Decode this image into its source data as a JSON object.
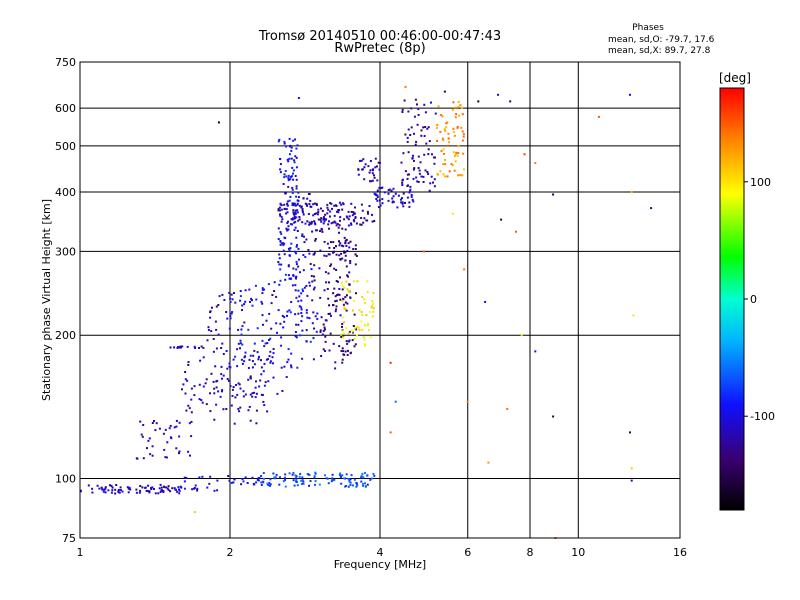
{
  "chart_data": {
    "type": "scatter",
    "title": "Tromsø 20140510 00:46:00-00:47:43",
    "subtitle": "RwPretec (8p)",
    "xlabel": "Frequency [MHz]",
    "ylabel": "Stationary phase Virtual Height [km]",
    "x_scale": "log",
    "y_scale": "log",
    "xlim": [
      1,
      16
    ],
    "ylim": [
      75,
      750
    ],
    "x_ticks": [
      1,
      2,
      4,
      6,
      8,
      10,
      16
    ],
    "y_ticks": [
      75,
      100,
      200,
      300,
      400,
      500,
      600,
      750
    ],
    "grid": true,
    "stats": {
      "title": "Phases",
      "o_line": "mean, sd,O: -79.7, 17.6",
      "x_line": "mean, sd,X:  89.7, 27.8"
    },
    "colorbar": {
      "unit": "[deg]",
      "range": [
        -180,
        180
      ],
      "ticks": [
        100,
        0,
        -100
      ],
      "tick_labels": [
        "100",
        "0",
        "-100"
      ]
    },
    "traces": [
      {
        "x_range": [
          1.0,
          1.6
        ],
        "y_range": [
          93,
          97
        ],
        "phase": -115,
        "n": 80
      },
      {
        "x_range": [
          1.55,
          2.3
        ],
        "y_range": [
          94,
          102
        ],
        "phase": -100,
        "n": 40
      },
      {
        "x_range": [
          2.3,
          3.9
        ],
        "y_range": [
          96,
          103
        ],
        "phase": -70,
        "n": 110
      },
      {
        "x_range": [
          1.3,
          1.7
        ],
        "y_range": [
          110,
          135
        ],
        "phase": -110,
        "n": 40
      },
      {
        "x_range": [
          1.6,
          2.4
        ],
        "y_range": [
          130,
          180
        ],
        "phase": -115,
        "n": 90
      },
      {
        "x_range": [
          1.8,
          2.6
        ],
        "y_range": [
          150,
          250
        ],
        "phase": -108,
        "n": 100
      },
      {
        "x_range": [
          2.0,
          3.0
        ],
        "y_range": [
          170,
          260
        ],
        "phase": -95,
        "n": 90
      },
      {
        "x_range": [
          2.5,
          2.75
        ],
        "y_range": [
          260,
          520
        ],
        "phase": -95,
        "n": 140
      },
      {
        "x_range": [
          2.7,
          2.95
        ],
        "y_range": [
          210,
          400
        ],
        "phase": -105,
        "n": 60
      },
      {
        "x_range": [
          2.9,
          3.5
        ],
        "y_range": [
          170,
          340
        ],
        "phase": -125,
        "n": 110
      },
      {
        "x_range": [
          3.1,
          3.6
        ],
        "y_range": [
          180,
          320
        ],
        "phase": -135,
        "n": 70
      },
      {
        "x_range": [
          2.5,
          3.9
        ],
        "y_range": [
          340,
          380
        ],
        "phase": -118,
        "n": 140
      },
      {
        "x_range": [
          3.9,
          4.7
        ],
        "y_range": [
          370,
          410
        ],
        "phase": -110,
        "n": 50
      },
      {
        "x_range": [
          3.3,
          3.9
        ],
        "y_range": [
          190,
          260
        ],
        "phase": 95,
        "n": 60
      },
      {
        "x_range": [
          3.6,
          4.0
        ],
        "y_range": [
          420,
          470
        ],
        "phase": -120,
        "n": 30
      },
      {
        "x_range": [
          4.4,
          5.2
        ],
        "y_range": [
          400,
          630
        ],
        "phase": -120,
        "n": 80
      },
      {
        "x_range": [
          5.2,
          5.9
        ],
        "y_range": [
          430,
          620
        ],
        "phase": 130,
        "n": 70
      },
      {
        "x_range": [
          1.5,
          1.8
        ],
        "y_range": [
          188,
          190
        ],
        "phase": -115,
        "n": 15
      }
    ],
    "scattered": [
      {
        "x": 1.9,
        "y": 560,
        "phase": -170
      },
      {
        "x": 2.75,
        "y": 630,
        "phase": -90
      },
      {
        "x": 4.5,
        "y": 665,
        "phase": 140
      },
      {
        "x": 5.4,
        "y": 650,
        "phase": -150
      },
      {
        "x": 6.3,
        "y": 620,
        "phase": -170
      },
      {
        "x": 6.9,
        "y": 640,
        "phase": -100
      },
      {
        "x": 7.3,
        "y": 620,
        "phase": -150
      },
      {
        "x": 7.8,
        "y": 480,
        "phase": 160
      },
      {
        "x": 8.2,
        "y": 460,
        "phase": 140
      },
      {
        "x": 8.9,
        "y": 395,
        "phase": -150
      },
      {
        "x": 7.0,
        "y": 350,
        "phase": -160
      },
      {
        "x": 7.5,
        "y": 330,
        "phase": 150
      },
      {
        "x": 11.0,
        "y": 575,
        "phase": 150
      },
      {
        "x": 12.7,
        "y": 640,
        "phase": -100
      },
      {
        "x": 14.0,
        "y": 370,
        "phase": -130
      },
      {
        "x": 12.8,
        "y": 400,
        "phase": 120
      },
      {
        "x": 6.5,
        "y": 235,
        "phase": -110
      },
      {
        "x": 7.7,
        "y": 200,
        "phase": 80
      },
      {
        "x": 8.2,
        "y": 185,
        "phase": -90
      },
      {
        "x": 6.0,
        "y": 145,
        "phase": 140
      },
      {
        "x": 4.3,
        "y": 145,
        "phase": -60
      },
      {
        "x": 7.2,
        "y": 140,
        "phase": 140
      },
      {
        "x": 8.9,
        "y": 135,
        "phase": -150
      },
      {
        "x": 4.2,
        "y": 125,
        "phase": 150
      },
      {
        "x": 6.6,
        "y": 108,
        "phase": 130
      },
      {
        "x": 12.8,
        "y": 105,
        "phase": 110
      },
      {
        "x": 12.7,
        "y": 125,
        "phase": -140
      },
      {
        "x": 12.9,
        "y": 220,
        "phase": 100
      },
      {
        "x": 4.2,
        "y": 175,
        "phase": 170
      },
      {
        "x": 4.9,
        "y": 300,
        "phase": 150
      },
      {
        "x": 5.9,
        "y": 275,
        "phase": 140
      },
      {
        "x": 1.7,
        "y": 85,
        "phase": 110
      },
      {
        "x": 9.0,
        "y": 75,
        "phase": 150
      },
      {
        "x": 5.6,
        "y": 360,
        "phase": 100
      },
      {
        "x": 12.8,
        "y": 99,
        "phase": -130
      }
    ]
  }
}
